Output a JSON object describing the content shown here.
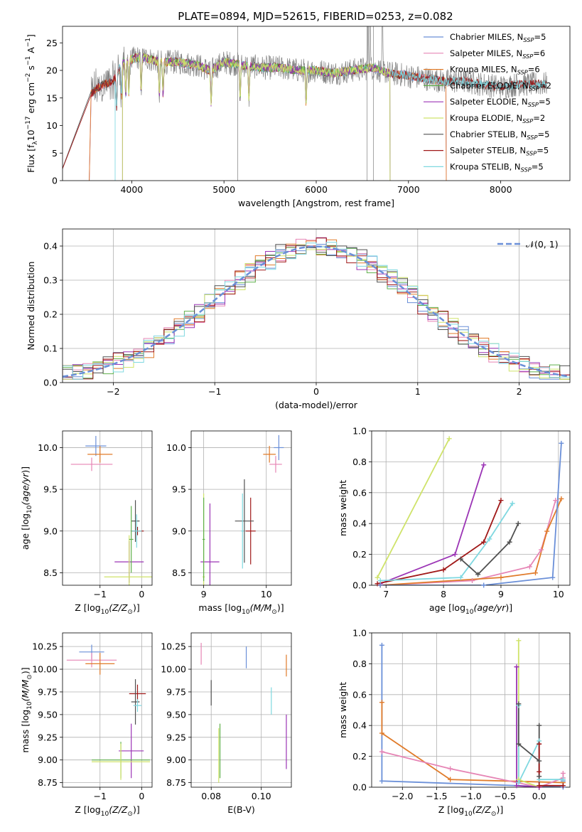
{
  "figure": {
    "title": "PLATE=0894, MJD=52615, FIBERID=0253, z=0.082"
  },
  "colors": {
    "Chabrier MILES": "#6a8fd8",
    "Salpeter MILES": "#e685b5",
    "Kroupa MILES": "#e07b2a",
    "Chabrier ELODIE": "#5fb04b",
    "Salpeter ELODIE": "#9b34b5",
    "Kroupa ELODIE": "#cfe36a",
    "Chabrier STELIB": "#505050",
    "Salpeter STELIB": "#a01818",
    "Kroupa STELIB": "#7fd8e0"
  },
  "chart_data": [
    {
      "id": "spectrum",
      "type": "line",
      "title": "PLATE=0894, MJD=52615, FIBERID=0253, z=0.082",
      "xlabel": "wavelength [Angstrom, rest frame]",
      "ylabel": "Flux [f_λ10^-17 erg cm^-2 s^-1 A^-1]",
      "xlim": [
        3250,
        8750
      ],
      "ylim": [
        0,
        28
      ],
      "xticks": [
        4000,
        5000,
        6000,
        7000,
        8000
      ],
      "yticks": [
        0,
        5,
        10,
        15,
        20,
        25
      ],
      "grid": false,
      "legend_position": "upper-right",
      "legend": [
        {
          "name": "Chabrier MILES",
          "nssp": "5"
        },
        {
          "name": "Salpeter MILES",
          "nssp": "6"
        },
        {
          "name": "Kroupa MILES",
          "nssp": "6"
        },
        {
          "name": "Chabrier ELODIE",
          "nssp": "2"
        },
        {
          "name": "Salpeter ELODIE",
          "nssp": "5"
        },
        {
          "name": "Kroupa ELODIE",
          "nssp": "2"
        },
        {
          "name": "Chabrier STELIB",
          "nssp": "5"
        },
        {
          "name": "Salpeter STELIB",
          "nssp": "5"
        },
        {
          "name": "Kroupa STELIB",
          "nssp": "5"
        }
      ],
      "data_color": "#808080",
      "observed_flux": {
        "x": [
          3550,
          3600,
          3700,
          3800,
          3900,
          4000,
          4100,
          4200,
          4300,
          4500,
          4700,
          4850,
          5000,
          5200,
          5400,
          5600,
          5800,
          6000,
          6200,
          6400,
          6600,
          6800,
          7000,
          7200,
          7400,
          7600,
          7800,
          8000,
          8200,
          8400
        ],
        "y": [
          15.5,
          16.5,
          17.5,
          18.0,
          21.5,
          22.0,
          22.5,
          22.0,
          21.5,
          21.5,
          21.0,
          20.0,
          21.5,
          21.0,
          20.5,
          20.5,
          20.0,
          20.0,
          19.5,
          20.0,
          20.5,
          19.5,
          19.0,
          18.5,
          18.0,
          18.0,
          17.5,
          17.0,
          17.5,
          17.5
        ]
      },
      "model_cutoffs": [
        {
          "series": "Chabrier MILES",
          "start": 3540,
          "end": 7410
        },
        {
          "series": "Salpeter MILES",
          "start": 3540,
          "end": 7410
        },
        {
          "series": "Kroupa MILES",
          "start": 3540,
          "end": 7410
        },
        {
          "series": "Chabrier STELIB",
          "start": 3200,
          "end": 8750
        },
        {
          "series": "Salpeter STELIB",
          "start": 3200,
          "end": 8750
        },
        {
          "series": "Kroupa STELIB",
          "start": 3820,
          "end": 8750
        },
        {
          "series": "Chabrier ELODIE",
          "start": 3900,
          "end": 6800
        },
        {
          "series": "Salpeter ELODIE",
          "start": 3900,
          "end": 6800
        },
        {
          "series": "Kroupa ELODIE",
          "start": 3900,
          "end": 6800
        }
      ]
    },
    {
      "id": "residuals",
      "type": "line",
      "xlabel": "(data-model)/error",
      "ylabel": "Normed distribution",
      "xlim": [
        -2.5,
        2.5
      ],
      "ylim": [
        0,
        0.45
      ],
      "xticks": [
        -2,
        -1,
        0,
        1,
        2
      ],
      "yticks": [
        0.0,
        0.1,
        0.2,
        0.3,
        0.4
      ],
      "grid": true,
      "legend_position": "upper-right",
      "legend": [
        {
          "name": "𝒩(0, 1)",
          "style": "dashed",
          "color": "#6a8fd8"
        }
      ],
      "gaussian": {
        "mean": 0,
        "sigma": 1
      },
      "bin_width": 0.1
    },
    {
      "id": "age_vs_Z",
      "type": "scatter",
      "xlabel": "Z [log10(Z/Z⊙)]",
      "ylabel": "age  [log10(age/yr)]",
      "xlim": [
        -1.9,
        0.25
      ],
      "ylim": [
        8.35,
        10.2
      ],
      "xticks": [
        -1,
        0
      ],
      "yticks": [
        8.5,
        9.0,
        9.5,
        10.0
      ],
      "grid": true,
      "points": [
        {
          "series": "Chabrier MILES",
          "x": -1.1,
          "xerr": 0.25,
          "y": 10.02,
          "yerr": 0.12
        },
        {
          "series": "Kroupa MILES",
          "x": -1.0,
          "xerr": 0.3,
          "y": 9.92,
          "yerr": 0.1
        },
        {
          "series": "Salpeter MILES",
          "x": -1.2,
          "xerr": 0.5,
          "y": 9.8,
          "yerr": 0.08
        },
        {
          "series": "Salpeter STELIB",
          "x": -0.1,
          "xerr": 0.15,
          "y": 9.0,
          "yerr": 0.05
        },
        {
          "series": "Chabrier STELIB",
          "x": -0.15,
          "xerr": 0.1,
          "y": 9.12,
          "yerr": 0.25
        },
        {
          "series": "Kroupa STELIB",
          "x": -0.12,
          "xerr": 0.12,
          "y": 9.0,
          "yerr": 0.2
        },
        {
          "series": "Salpeter ELODIE",
          "x": -0.3,
          "xerr": 0.35,
          "y": 8.63,
          "yerr": 0.25
        },
        {
          "series": "Kroupa ELODIE",
          "x": -0.3,
          "xerr": 0.6,
          "y": 8.45,
          "yerr": 0.5
        },
        {
          "series": "Chabrier ELODIE",
          "x": -0.25,
          "xerr": 0.05,
          "y": 8.9,
          "yerr": 0.4
        }
      ]
    },
    {
      "id": "age_vs_mass",
      "type": "scatter",
      "xlabel": "mass [log10(M/M⊙)]",
      "ylabel": "",
      "xlim": [
        8.8,
        10.4
      ],
      "ylim": [
        8.35,
        10.2
      ],
      "xticks": [
        9,
        10
      ],
      "yticks": [
        8.5,
        9.0,
        9.5,
        10.0
      ],
      "grid": true,
      "points": [
        {
          "series": "Chabrier MILES",
          "x": 10.2,
          "xerr": 0.08,
          "y": 10.0,
          "yerr": 0.15
        },
        {
          "series": "Kroupa MILES",
          "x": 10.05,
          "xerr": 0.1,
          "y": 9.92,
          "yerr": 0.1
        },
        {
          "series": "Salpeter MILES",
          "x": 10.15,
          "xerr": 0.1,
          "y": 9.8,
          "yerr": 0.1
        },
        {
          "series": "Salpeter STELIB",
          "x": 9.75,
          "xerr": 0.08,
          "y": 9.0,
          "yerr": 0.4
        },
        {
          "series": "Chabrier STELIB",
          "x": 9.65,
          "xerr": 0.15,
          "y": 9.12,
          "yerr": 0.5
        },
        {
          "series": "Kroupa STELIB",
          "x": 9.62,
          "xerr": 0.02,
          "y": 9.0,
          "yerr": 0.45
        },
        {
          "series": "Salpeter ELODIE",
          "x": 9.1,
          "xerr": 0.15,
          "y": 8.63,
          "yerr": 0.7
        },
        {
          "series": "Kroupa ELODIE",
          "x": 9.0,
          "xerr": 0.02,
          "y": 8.45,
          "yerr": 1.0
        },
        {
          "series": "Chabrier ELODIE",
          "x": 9.0,
          "xerr": 0.02,
          "y": 8.9,
          "yerr": 0.5
        }
      ]
    },
    {
      "id": "mass_weight_vs_age",
      "type": "line",
      "xlabel": "age  [log10(age/yr)]",
      "ylabel": "mass weight",
      "xlim": [
        6.75,
        10.2
      ],
      "ylim": [
        0,
        1.0
      ],
      "xticks": [
        7,
        8,
        9,
        10
      ],
      "yticks": [
        0.0,
        0.2,
        0.4,
        0.6,
        0.8,
        1.0
      ],
      "grid": true,
      "series": [
        {
          "name": "Kroupa ELODIE",
          "x": [
            6.85,
            8.1
          ],
          "y": [
            0.05,
            0.95
          ]
        },
        {
          "name": "Salpeter ELODIE",
          "x": [
            6.9,
            8.2,
            8.7
          ],
          "y": [
            0.01,
            0.2,
            0.78
          ]
        },
        {
          "name": "Salpeter STELIB",
          "x": [
            6.85,
            8.0,
            8.7,
            9.0
          ],
          "y": [
            0.01,
            0.1,
            0.28,
            0.55
          ]
        },
        {
          "name": "Kroupa STELIB",
          "x": [
            6.9,
            8.3,
            8.8,
            9.2
          ],
          "y": [
            0.03,
            0.05,
            0.3,
            0.53
          ]
        },
        {
          "name": "Chabrier STELIB",
          "x": [
            8.3,
            8.6,
            9.15,
            9.3
          ],
          "y": [
            0.17,
            0.07,
            0.28,
            0.4
          ]
        },
        {
          "name": "Salpeter MILES",
          "x": [
            6.9,
            8.5,
            9.5,
            9.7,
            9.95
          ],
          "y": [
            0.0,
            0.03,
            0.12,
            0.23,
            0.55
          ]
        },
        {
          "name": "Kroupa MILES",
          "x": [
            6.9,
            9.0,
            9.6,
            9.8,
            10.05
          ],
          "y": [
            0.0,
            0.05,
            0.08,
            0.35,
            0.56
          ]
        },
        {
          "name": "Chabrier MILES",
          "x": [
            6.9,
            8.7,
            9.9,
            10.05
          ],
          "y": [
            0.0,
            0.0,
            0.05,
            0.92
          ]
        }
      ]
    },
    {
      "id": "mass_vs_Z",
      "type": "scatter",
      "xlabel": "Z [log10(Z/Z⊙)]",
      "ylabel": "mass [log10(M/M⊙)]",
      "xlim": [
        -1.9,
        0.25
      ],
      "ylim": [
        8.7,
        10.4
      ],
      "xticks": [
        -1,
        0
      ],
      "yticks": [
        8.75,
        9.0,
        9.25,
        9.5,
        9.75,
        10.0,
        10.25
      ],
      "grid": true,
      "points": [
        {
          "series": "Chabrier MILES",
          "x": -1.2,
          "xerr": 0.3,
          "y": 10.19,
          "yerr": 0.08
        },
        {
          "series": "Salpeter MILES",
          "x": -1.2,
          "xerr": 0.6,
          "y": 10.1,
          "yerr": 0.08
        },
        {
          "series": "Kroupa MILES",
          "x": -1.0,
          "xerr": 0.35,
          "y": 10.06,
          "yerr": 0.12
        },
        {
          "series": "Salpeter STELIB",
          "x": -0.1,
          "xerr": 0.2,
          "y": 9.73,
          "yerr": 0.1
        },
        {
          "series": "Chabrier STELIB",
          "x": -0.15,
          "xerr": 0.1,
          "y": 9.64,
          "yerr": 0.25
        },
        {
          "series": "Kroupa STELIB",
          "x": -0.1,
          "xerr": 0.1,
          "y": 9.6,
          "yerr": 0.07
        },
        {
          "series": "Salpeter ELODIE",
          "x": -0.25,
          "xerr": 0.3,
          "y": 9.1,
          "yerr": 0.3
        },
        {
          "series": "Chabrier ELODIE",
          "x": -0.5,
          "xerr": 0.7,
          "y": 9.0,
          "yerr": 0.2
        },
        {
          "series": "Kroupa ELODIE",
          "x": -0.5,
          "xerr": 0.7,
          "y": 8.98,
          "yerr": 0.2
        }
      ]
    },
    {
      "id": "mass_vs_EBV",
      "type": "scatter",
      "xlabel": "E(B-V)",
      "ylabel": "",
      "xlim": [
        0.072,
        0.112
      ],
      "ylim": [
        8.7,
        10.4
      ],
      "xticks": [
        0.08,
        0.1
      ],
      "yticks": [
        8.75,
        9.0,
        9.25,
        9.5,
        9.75,
        10.0,
        10.25
      ],
      "grid": true,
      "points": [
        {
          "series": "Salpeter MILES",
          "x": 0.076,
          "xerr": 0,
          "y": 10.17,
          "yerr": 0.12
        },
        {
          "series": "Chabrier MILES",
          "x": 0.094,
          "xerr": 0,
          "y": 10.13,
          "yerr": 0.12
        },
        {
          "series": "Kroupa MILES",
          "x": 0.11,
          "xerr": 0,
          "y": 10.04,
          "yerr": 0.12
        },
        {
          "series": "Chabrier STELIB",
          "x": 0.08,
          "xerr": 0,
          "y": 9.74,
          "yerr": 0.14
        },
        {
          "series": "Kroupa STELIB",
          "x": 0.104,
          "xerr": 0,
          "y": 9.65,
          "yerr": 0.15
        },
        {
          "series": "Salpeter ELODIE",
          "x": 0.11,
          "xerr": 0,
          "y": 9.2,
          "yerr": 0.3
        },
        {
          "series": "Chabrier ELODIE",
          "x": 0.0835,
          "xerr": 0,
          "y": 9.1,
          "yerr": 0.3
        },
        {
          "series": "Kroupa ELODIE",
          "x": 0.083,
          "xerr": 0,
          "y": 9.05,
          "yerr": 0.3
        }
      ]
    },
    {
      "id": "mass_weight_vs_Z",
      "type": "line",
      "xlabel": "Z [log10(Z/Z⊙)]",
      "ylabel": "mass weight",
      "xlim": [
        -2.45,
        0.45
      ],
      "ylim": [
        0,
        1.0
      ],
      "xticks": [
        -2.0,
        -1.5,
        -1.0,
        -0.5,
        0.0
      ],
      "yticks": [
        0.0,
        0.2,
        0.4,
        0.6,
        0.8,
        1.0
      ],
      "grid": true,
      "series": [
        {
          "name": "Chabrier MILES",
          "x": [
            -2.3,
            -2.3,
            0.35,
            0.35
          ],
          "y": [
            0.92,
            0.04,
            0.0,
            0.04
          ]
        },
        {
          "name": "Kroupa MILES",
          "x": [
            -2.3,
            -2.3,
            -1.3,
            0.35
          ],
          "y": [
            0.55,
            0.35,
            0.05,
            0.03
          ]
        },
        {
          "name": "Salpeter MILES",
          "x": [
            -2.3,
            -1.3,
            0.0,
            0.35,
            0.35
          ],
          "y": [
            0.23,
            0.12,
            0.0,
            0.06,
            0.09
          ]
        },
        {
          "name": "Kroupa ELODIE",
          "x": [
            -0.3,
            -0.3,
            0.0
          ],
          "y": [
            0.95,
            0.05,
            0.0
          ]
        },
        {
          "name": "Salpeter ELODIE",
          "x": [
            -0.33,
            -0.33,
            0.0
          ],
          "y": [
            0.78,
            0.01,
            0.0
          ]
        },
        {
          "name": "Kroupa STELIB",
          "x": [
            -0.3,
            -0.3,
            0.0,
            0.0,
            0.35
          ],
          "y": [
            0.53,
            0.03,
            0.3,
            0.05,
            0.05
          ]
        },
        {
          "name": "Chabrier STELIB",
          "x": [
            -0.3,
            -0.3,
            0.0,
            0.0,
            0.0
          ],
          "y": [
            0.54,
            0.28,
            0.17,
            0.07,
            0.4
          ]
        },
        {
          "name": "Salpeter STELIB",
          "x": [
            0.0,
            0.0,
            0.0,
            0.35
          ],
          "y": [
            0.28,
            0.1,
            0.01,
            0.01
          ]
        }
      ]
    }
  ]
}
